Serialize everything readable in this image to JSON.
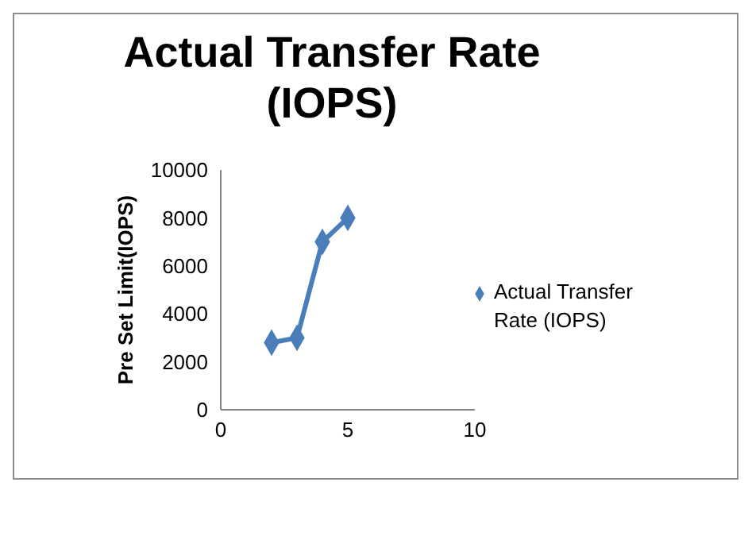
{
  "chart_data": {
    "type": "line",
    "title": "Actual Transfer Rate (IOPS)",
    "ylabel": "Pre Set Limit(IOPS)",
    "x": [
      2,
      3,
      4,
      5
    ],
    "series": [
      {
        "name": "Actual Transfer Rate (IOPS)",
        "color": "#4a7ebb",
        "values": [
          2800,
          3000,
          7000,
          8000
        ]
      }
    ],
    "xlim": [
      0,
      10
    ],
    "xticks": [
      0,
      5,
      10
    ],
    "ylim": [
      0,
      10000
    ],
    "yticks": [
      0,
      2000,
      4000,
      6000,
      8000,
      10000
    ],
    "grid": false,
    "legend": "right",
    "marker": "diamond",
    "line_style": "solid"
  }
}
